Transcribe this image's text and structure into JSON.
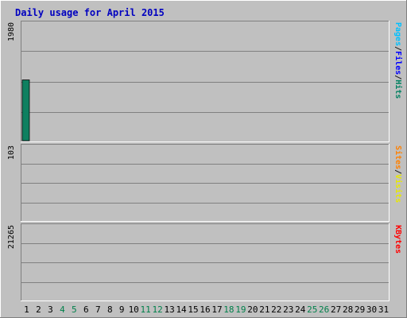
{
  "chart_data": {
    "type": "bar",
    "title": "Daily usage for April 2015",
    "categories": [
      "1",
      "2",
      "3",
      "4",
      "5",
      "6",
      "7",
      "8",
      "9",
      "10",
      "11",
      "12",
      "13",
      "14",
      "15",
      "16",
      "17",
      "18",
      "19",
      "20",
      "21",
      "22",
      "23",
      "24",
      "25",
      "26",
      "27",
      "28",
      "29",
      "30",
      "31"
    ],
    "weekend_days": [
      "4",
      "5",
      "11",
      "12",
      "18",
      "19",
      "25",
      "26"
    ],
    "panels": [
      {
        "id": "hits-files-pages",
        "ymax_label": "1980",
        "ymax": 1980,
        "ylabel_parts": [
          {
            "text": "Pages",
            "color": "#00c0ff"
          },
          {
            "text": "/",
            "color": "#1a1a1a"
          },
          {
            "text": "Files",
            "color": "#0000ff"
          },
          {
            "text": "/",
            "color": "#1a1a1a"
          },
          {
            "text": "Hits",
            "color": "#008060"
          }
        ],
        "series": [
          {
            "name": "Hits",
            "color": "#0e8060",
            "values": [
              1030,
              0,
              0,
              0,
              0,
              0,
              0,
              0,
              0,
              0,
              0,
              0,
              0,
              0,
              0,
              0,
              0,
              0,
              0,
              0,
              0,
              0,
              0,
              0,
              0,
              0,
              0,
              0,
              0,
              0,
              0
            ]
          },
          {
            "name": "Files",
            "color": "#0000f0",
            "values": [
              0,
              0,
              0,
              0,
              0,
              0,
              0,
              0,
              0,
              0,
              0,
              0,
              0,
              0,
              0,
              0,
              0,
              0,
              0,
              0,
              0,
              0,
              0,
              0,
              0,
              0,
              0,
              0,
              0,
              0,
              0
            ]
          },
          {
            "name": "Pages",
            "color": "#00c0ff",
            "values": [
              0,
              0,
              0,
              0,
              0,
              0,
              0,
              0,
              0,
              0,
              0,
              0,
              0,
              0,
              0,
              0,
              0,
              0,
              0,
              0,
              0,
              0,
              0,
              0,
              0,
              0,
              0,
              0,
              0,
              0,
              0
            ]
          }
        ]
      },
      {
        "id": "visits-sites",
        "ymax_label": "103",
        "ymax": 103,
        "ylabel_parts": [
          {
            "text": "Sites",
            "color": "#ff8000"
          },
          {
            "text": "/",
            "color": "#1a1a1a"
          },
          {
            "text": "Visits",
            "color": "#e8e800"
          }
        ],
        "series": [
          {
            "name": "Visits",
            "color": "#ff8c00",
            "values": [
              0,
              0,
              0,
              0,
              0,
              0,
              0,
              0,
              0,
              0,
              0,
              0,
              0,
              0,
              0,
              0,
              0,
              0,
              0,
              0,
              0,
              0,
              0,
              0,
              0,
              0,
              0,
              0,
              0,
              0,
              0
            ]
          },
          {
            "name": "Sites",
            "color": "#ffff00",
            "values": [
              0,
              0,
              0,
              0,
              0,
              0,
              0,
              0,
              0,
              0,
              0,
              0,
              0,
              0,
              0,
              0,
              0,
              0,
              0,
              0,
              0,
              0,
              0,
              0,
              0,
              0,
              0,
              0,
              0,
              0,
              0
            ]
          }
        ]
      },
      {
        "id": "kbytes",
        "ymax_label": "21265",
        "ymax": 21265,
        "ylabel_parts": [
          {
            "text": "KBytes",
            "color": "#ff0000"
          }
        ],
        "series": [
          {
            "name": "KBytes",
            "color": "#ff0000",
            "values": [
              0,
              0,
              0,
              0,
              0,
              0,
              0,
              0,
              0,
              0,
              0,
              0,
              0,
              0,
              0,
              0,
              0,
              0,
              0,
              0,
              0,
              0,
              0,
              0,
              0,
              0,
              0,
              0,
              0,
              0,
              0
            ]
          }
        ]
      }
    ]
  }
}
